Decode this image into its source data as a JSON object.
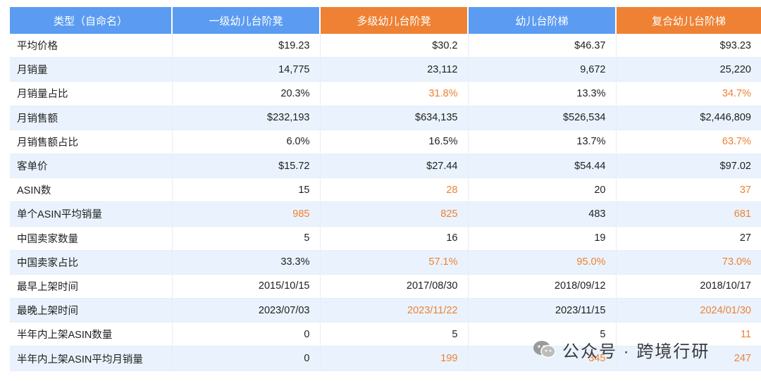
{
  "header": {
    "label": "类型（自命名）",
    "columns": [
      {
        "name": "一级幼儿台阶凳",
        "color": "blue"
      },
      {
        "name": "多级幼儿台阶凳",
        "color": "orange"
      },
      {
        "name": "幼儿台阶梯",
        "color": "blue"
      },
      {
        "name": "复合幼儿台阶梯",
        "color": "orange"
      }
    ]
  },
  "rows": [
    {
      "label": "平均价格",
      "values": [
        "$19.23",
        "$30.2",
        "$46.37",
        "$93.23"
      ],
      "highlight": [
        false,
        false,
        false,
        false
      ]
    },
    {
      "label": "月销量",
      "values": [
        "14,775",
        "23,112",
        "9,672",
        "25,220"
      ],
      "highlight": [
        false,
        false,
        false,
        false
      ]
    },
    {
      "label": "月销量占比",
      "values": [
        "20.3%",
        "31.8%",
        "13.3%",
        "34.7%"
      ],
      "highlight": [
        false,
        true,
        false,
        true
      ]
    },
    {
      "label": "月销售额",
      "values": [
        "$232,193",
        "$634,135",
        "$526,534",
        "$2,446,809"
      ],
      "highlight": [
        false,
        false,
        false,
        false
      ]
    },
    {
      "label": "月销售额占比",
      "values": [
        "6.0%",
        "16.5%",
        "13.7%",
        "63.7%"
      ],
      "highlight": [
        false,
        false,
        false,
        true
      ]
    },
    {
      "label": "客单价",
      "values": [
        "$15.72",
        "$27.44",
        "$54.44",
        "$97.02"
      ],
      "highlight": [
        false,
        false,
        false,
        false
      ]
    },
    {
      "label": "ASIN数",
      "values": [
        "15",
        "28",
        "20",
        "37"
      ],
      "highlight": [
        false,
        true,
        false,
        true
      ]
    },
    {
      "label": "单个ASIN平均销量",
      "values": [
        "985",
        "825",
        "483",
        "681"
      ],
      "highlight": [
        true,
        true,
        false,
        true
      ]
    },
    {
      "label": "中国卖家数量",
      "values": [
        "5",
        "16",
        "19",
        "27"
      ],
      "highlight": [
        false,
        false,
        false,
        false
      ]
    },
    {
      "label": "中国卖家占比",
      "values": [
        "33.3%",
        "57.1%",
        "95.0%",
        "73.0%"
      ],
      "highlight": [
        false,
        true,
        true,
        true
      ]
    },
    {
      "label": "最早上架时间",
      "values": [
        "2015/10/15",
        "2017/08/30",
        "2018/09/12",
        "2018/10/17"
      ],
      "highlight": [
        false,
        false,
        false,
        false
      ]
    },
    {
      "label": "最晚上架时间",
      "values": [
        "2023/07/03",
        "2023/11/22",
        "2023/11/15",
        "2024/01/30"
      ],
      "highlight": [
        false,
        true,
        false,
        true
      ]
    },
    {
      "label": "半年内上架ASIN数量",
      "values": [
        "0",
        "5",
        "5",
        "11"
      ],
      "highlight": [
        false,
        false,
        false,
        true
      ]
    },
    {
      "label": "半年内上架ASIN平均月销量",
      "values": [
        "0",
        "199",
        "345",
        "247"
      ],
      "highlight": [
        false,
        true,
        true,
        true
      ]
    }
  ],
  "colors": {
    "blue": "#5b9cf2",
    "orange": "#ee8133",
    "highlight_text": "#ee8133",
    "stripe": "#eaf3fd"
  },
  "watermark": {
    "icon": "wechat-icon",
    "text": "公众号 · 跨境行研"
  }
}
